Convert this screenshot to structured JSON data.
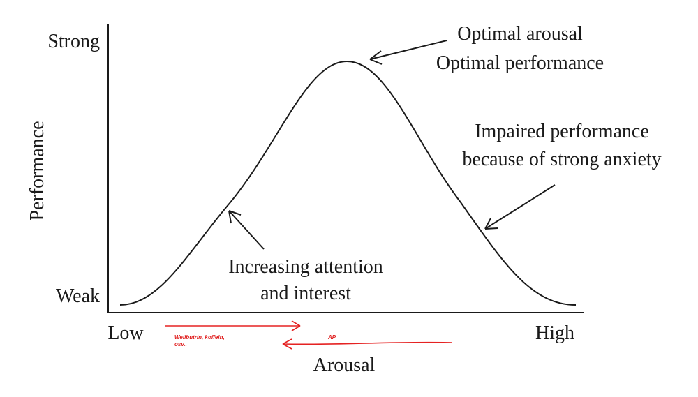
{
  "axes": {
    "y_label": "Performance",
    "y_top": "Strong",
    "y_bottom": "Weak",
    "x_label": "Arousal",
    "x_left": "Low",
    "x_right": "High"
  },
  "annotations": {
    "optimal": [
      "Optimal arousal",
      "Optimal performance"
    ],
    "impaired": [
      "Impaired performance",
      "because of strong anxiety"
    ],
    "increasing": [
      "Increasing attention",
      "and interest"
    ]
  },
  "handwritten": {
    "right_arrow": [
      "Wellbutrin, koffein,",
      "osv.."
    ],
    "left_arrow": "AP"
  }
}
